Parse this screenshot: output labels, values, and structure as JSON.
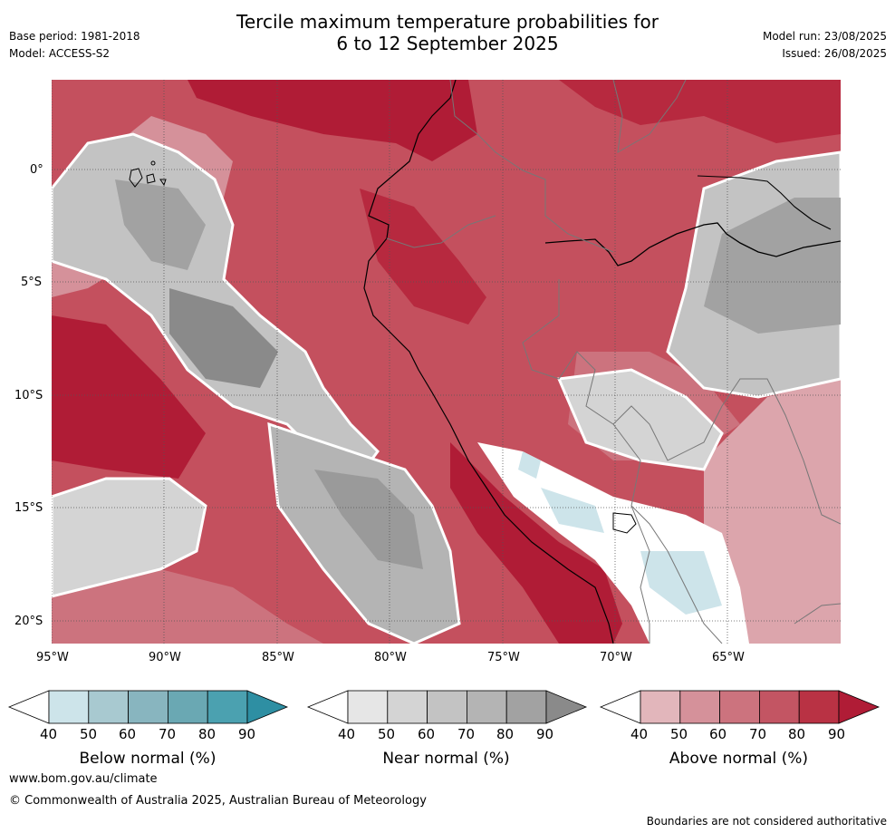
{
  "header": {
    "title_line1": "Tercile maximum temperature probabilities for",
    "title_line2": "6 to 12 September 2025",
    "base_period": "Base period: 1981-2018",
    "model": "Model: ACCESS-S2",
    "model_run": "Model run: 23/08/2025",
    "issued": "Issued: 26/08/2025"
  },
  "map": {
    "lat_labels": [
      "0°",
      "5°S",
      "10°S",
      "15°S",
      "20°S"
    ],
    "lon_labels": [
      "95°W",
      "90°W",
      "85°W",
      "80°W",
      "75°W",
      "70°W",
      "65°W"
    ]
  },
  "colorbars": [
    {
      "label": "Below normal (%)",
      "ticks": [
        "40",
        "50",
        "60",
        "70",
        "80",
        "90"
      ],
      "colors": [
        "#ffffff",
        "#cde4ea",
        "#a8c9d0",
        "#88b5bf",
        "#6aa8b3",
        "#4ba1b0",
        "#2e8fa3"
      ]
    },
    {
      "label": "Near normal (%)",
      "ticks": [
        "40",
        "50",
        "60",
        "70",
        "80",
        "90"
      ],
      "colors": [
        "#ffffff",
        "#e6e6e6",
        "#d4d4d4",
        "#c3c3c3",
        "#b4b4b4",
        "#a2a2a2",
        "#8a8a8a"
      ]
    },
    {
      "label": "Above normal (%)",
      "ticks": [
        "40",
        "50",
        "60",
        "70",
        "80",
        "90"
      ],
      "colors": [
        "#ffffff",
        "#e2b6bb",
        "#d5919a",
        "#cc737e",
        "#c35563",
        "#b93244",
        "#b01c36"
      ]
    }
  ],
  "footer": {
    "website": "www.bom.gov.au/climate",
    "copyright": "© Commonwealth of Australia 2025, Australian Bureau of Meteorology",
    "disclaimer": "Boundaries are not considered authoritative"
  }
}
